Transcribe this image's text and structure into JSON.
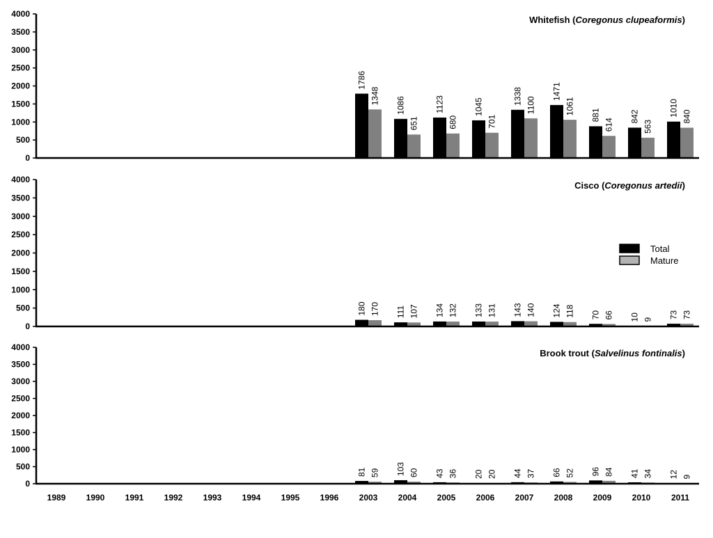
{
  "chart_data": {
    "type": "bar",
    "categories": [
      "1989",
      "1990",
      "1991",
      "1992",
      "1993",
      "1994",
      "1995",
      "1996",
      "2003",
      "2004",
      "2005",
      "2006",
      "2007",
      "2008",
      "2009",
      "2010",
      "2011"
    ],
    "ylim": [
      0,
      4000
    ],
    "yticks": [
      0,
      500,
      1000,
      1500,
      2000,
      2500,
      3000,
      3500,
      4000
    ],
    "colors": {
      "Total": "#000000",
      "Mature": "#808080",
      "legend_mature": "#b3b3b3"
    },
    "legend": {
      "placement": "right",
      "entries": [
        "Total",
        "Mature"
      ]
    },
    "panels": [
      {
        "title_prefix": "Whitefish (",
        "title_species": "Coregonus clupeaformis",
        "title_suffix": ")",
        "series": [
          {
            "name": "Total",
            "values": [
              null,
              null,
              null,
              null,
              null,
              null,
              null,
              null,
              1786,
              1086,
              1123,
              1045,
              1338,
              1471,
              881,
              842,
              1010
            ]
          },
          {
            "name": "Mature",
            "values": [
              null,
              null,
              null,
              null,
              null,
              null,
              null,
              null,
              1348,
              651,
              680,
              701,
              1100,
              1061,
              614,
              563,
              840
            ]
          }
        ]
      },
      {
        "title_prefix": "Cisco (",
        "title_species": "Coregonus artedii",
        "title_suffix": ")",
        "series": [
          {
            "name": "Total",
            "values": [
              null,
              null,
              null,
              null,
              null,
              null,
              null,
              null,
              180,
              111,
              134,
              133,
              143,
              124,
              70,
              10,
              73
            ]
          },
          {
            "name": "Mature",
            "values": [
              null,
              null,
              null,
              null,
              null,
              null,
              null,
              null,
              170,
              107,
              132,
              131,
              140,
              118,
              66,
              9,
              73
            ]
          }
        ]
      },
      {
        "title_prefix": "Brook trout (",
        "title_species": "Salvelinus fontinalis",
        "title_suffix": ")",
        "series": [
          {
            "name": "Total",
            "values": [
              null,
              null,
              null,
              null,
              null,
              null,
              null,
              null,
              81,
              103,
              43,
              20,
              44,
              66,
              96,
              41,
              12
            ]
          },
          {
            "name": "Mature",
            "values": [
              null,
              null,
              null,
              null,
              null,
              null,
              null,
              null,
              59,
              60,
              36,
              20,
              37,
              52,
              84,
              34,
              9
            ]
          }
        ]
      }
    ]
  }
}
